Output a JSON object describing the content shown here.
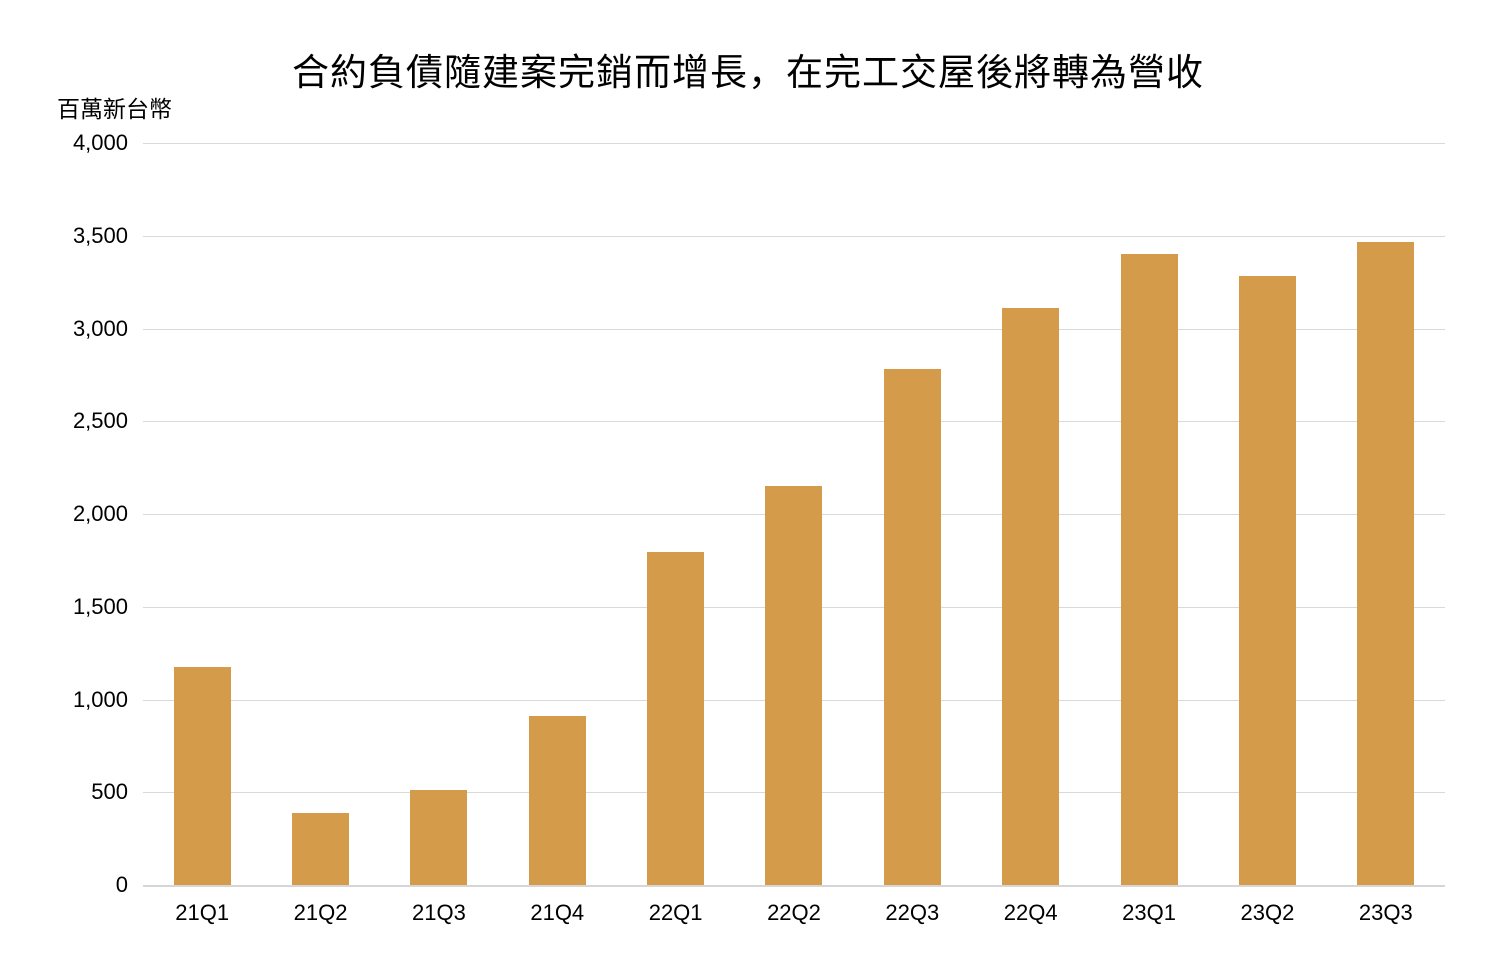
{
  "chart_data": {
    "type": "bar",
    "title": "合約負債隨建案完銷而增長，在完工交屋後將轉為營收",
    "ylabel": "百萬新台幣",
    "xlabel": "",
    "categories": [
      "21Q1",
      "21Q2",
      "21Q3",
      "21Q4",
      "22Q1",
      "22Q2",
      "22Q3",
      "22Q4",
      "23Q1",
      "23Q2",
      "23Q3"
    ],
    "values": [
      1175,
      390,
      510,
      910,
      1795,
      2150,
      2780,
      3110,
      3400,
      3285,
      3465
    ],
    "ylim": [
      0,
      4000
    ],
    "ytick_interval": 500,
    "ytick_labels": [
      "4,000",
      "3,500",
      "3,000",
      "2,500",
      "2,000",
      "1,500",
      "1,000",
      "500",
      "0"
    ],
    "grid": true,
    "legend": false,
    "bar_color": "#D49C4A",
    "gridline_color": "#D9D9D9",
    "axis_line_color": "#D6D6D6"
  }
}
